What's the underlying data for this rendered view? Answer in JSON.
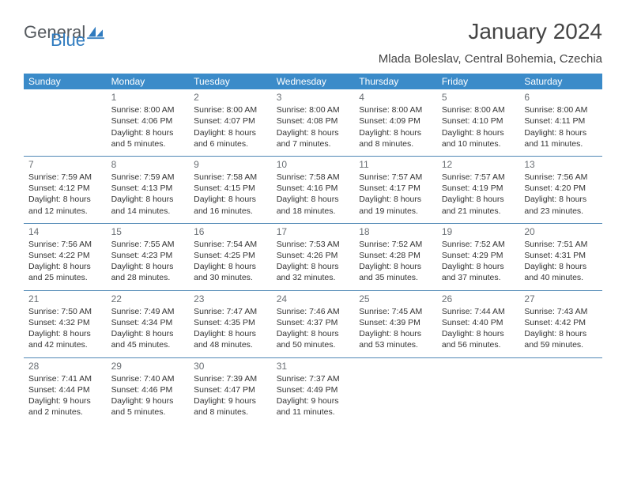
{
  "logo": {
    "text_general": "General",
    "text_blue": "Blue"
  },
  "title": "January 2024",
  "subtitle": "Mlada Boleslav, Central Bohemia, Czechia",
  "colors": {
    "header_bg": "#3b8bc9",
    "header_text": "#ffffff",
    "row_divider": "#5088b5",
    "daynum": "#6a6f74",
    "body_text": "#333333",
    "logo_blue": "#2f7bbf",
    "logo_gray": "#555a5f",
    "page_bg": "#ffffff"
  },
  "days_of_week": [
    "Sunday",
    "Monday",
    "Tuesday",
    "Wednesday",
    "Thursday",
    "Friday",
    "Saturday"
  ],
  "weeks": [
    [
      null,
      {
        "n": "1",
        "sr": "8:00 AM",
        "ss": "4:06 PM",
        "dl": "8 hours and 5 minutes."
      },
      {
        "n": "2",
        "sr": "8:00 AM",
        "ss": "4:07 PM",
        "dl": "8 hours and 6 minutes."
      },
      {
        "n": "3",
        "sr": "8:00 AM",
        "ss": "4:08 PM",
        "dl": "8 hours and 7 minutes."
      },
      {
        "n": "4",
        "sr": "8:00 AM",
        "ss": "4:09 PM",
        "dl": "8 hours and 8 minutes."
      },
      {
        "n": "5",
        "sr": "8:00 AM",
        "ss": "4:10 PM",
        "dl": "8 hours and 10 minutes."
      },
      {
        "n": "6",
        "sr": "8:00 AM",
        "ss": "4:11 PM",
        "dl": "8 hours and 11 minutes."
      }
    ],
    [
      {
        "n": "7",
        "sr": "7:59 AM",
        "ss": "4:12 PM",
        "dl": "8 hours and 12 minutes."
      },
      {
        "n": "8",
        "sr": "7:59 AM",
        "ss": "4:13 PM",
        "dl": "8 hours and 14 minutes."
      },
      {
        "n": "9",
        "sr": "7:58 AM",
        "ss": "4:15 PM",
        "dl": "8 hours and 16 minutes."
      },
      {
        "n": "10",
        "sr": "7:58 AM",
        "ss": "4:16 PM",
        "dl": "8 hours and 18 minutes."
      },
      {
        "n": "11",
        "sr": "7:57 AM",
        "ss": "4:17 PM",
        "dl": "8 hours and 19 minutes."
      },
      {
        "n": "12",
        "sr": "7:57 AM",
        "ss": "4:19 PM",
        "dl": "8 hours and 21 minutes."
      },
      {
        "n": "13",
        "sr": "7:56 AM",
        "ss": "4:20 PM",
        "dl": "8 hours and 23 minutes."
      }
    ],
    [
      {
        "n": "14",
        "sr": "7:56 AM",
        "ss": "4:22 PM",
        "dl": "8 hours and 25 minutes."
      },
      {
        "n": "15",
        "sr": "7:55 AM",
        "ss": "4:23 PM",
        "dl": "8 hours and 28 minutes."
      },
      {
        "n": "16",
        "sr": "7:54 AM",
        "ss": "4:25 PM",
        "dl": "8 hours and 30 minutes."
      },
      {
        "n": "17",
        "sr": "7:53 AM",
        "ss": "4:26 PM",
        "dl": "8 hours and 32 minutes."
      },
      {
        "n": "18",
        "sr": "7:52 AM",
        "ss": "4:28 PM",
        "dl": "8 hours and 35 minutes."
      },
      {
        "n": "19",
        "sr": "7:52 AM",
        "ss": "4:29 PM",
        "dl": "8 hours and 37 minutes."
      },
      {
        "n": "20",
        "sr": "7:51 AM",
        "ss": "4:31 PM",
        "dl": "8 hours and 40 minutes."
      }
    ],
    [
      {
        "n": "21",
        "sr": "7:50 AM",
        "ss": "4:32 PM",
        "dl": "8 hours and 42 minutes."
      },
      {
        "n": "22",
        "sr": "7:49 AM",
        "ss": "4:34 PM",
        "dl": "8 hours and 45 minutes."
      },
      {
        "n": "23",
        "sr": "7:47 AM",
        "ss": "4:35 PM",
        "dl": "8 hours and 48 minutes."
      },
      {
        "n": "24",
        "sr": "7:46 AM",
        "ss": "4:37 PM",
        "dl": "8 hours and 50 minutes."
      },
      {
        "n": "25",
        "sr": "7:45 AM",
        "ss": "4:39 PM",
        "dl": "8 hours and 53 minutes."
      },
      {
        "n": "26",
        "sr": "7:44 AM",
        "ss": "4:40 PM",
        "dl": "8 hours and 56 minutes."
      },
      {
        "n": "27",
        "sr": "7:43 AM",
        "ss": "4:42 PM",
        "dl": "8 hours and 59 minutes."
      }
    ],
    [
      {
        "n": "28",
        "sr": "7:41 AM",
        "ss": "4:44 PM",
        "dl": "9 hours and 2 minutes."
      },
      {
        "n": "29",
        "sr": "7:40 AM",
        "ss": "4:46 PM",
        "dl": "9 hours and 5 minutes."
      },
      {
        "n": "30",
        "sr": "7:39 AM",
        "ss": "4:47 PM",
        "dl": "9 hours and 8 minutes."
      },
      {
        "n": "31",
        "sr": "7:37 AM",
        "ss": "4:49 PM",
        "dl": "9 hours and 11 minutes."
      },
      null,
      null,
      null
    ]
  ],
  "labels": {
    "sunrise": "Sunrise: ",
    "sunset": "Sunset: ",
    "daylight": "Daylight: "
  }
}
